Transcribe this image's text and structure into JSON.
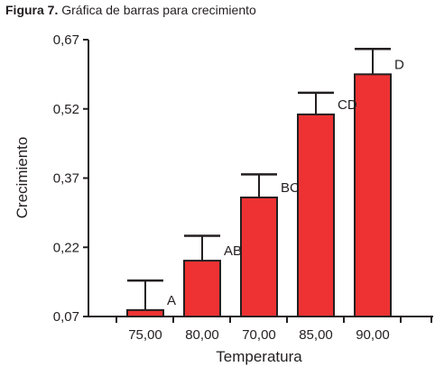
{
  "caption": {
    "lead": "Figura 7.",
    "text": "Gráfica de barras para crecimiento"
  },
  "chart_data": {
    "type": "bar",
    "title": "Figura 7. Gráfica de barras para crecimiento",
    "xlabel": "Temperatura",
    "ylabel": "Crecimiento",
    "categories": [
      "75,00",
      "80,00",
      "70,00",
      "85,00",
      "90,00"
    ],
    "values": [
      0.084,
      0.191,
      0.328,
      0.508,
      0.595
    ],
    "error_upper": [
      0.148,
      0.245,
      0.378,
      0.555,
      0.65
    ],
    "group_letters": [
      "A",
      "AB",
      "BC",
      "CD",
      "D"
    ],
    "ylim": [
      0.07,
      0.67
    ],
    "yticks": [
      0.07,
      0.22,
      0.37,
      0.52,
      0.67
    ],
    "ytick_labels": [
      "0,07",
      "0,22",
      "0,37",
      "0,52",
      "0,67"
    ],
    "grid": false,
    "bar_color": "#ee3233",
    "line_color": "#231f20"
  }
}
